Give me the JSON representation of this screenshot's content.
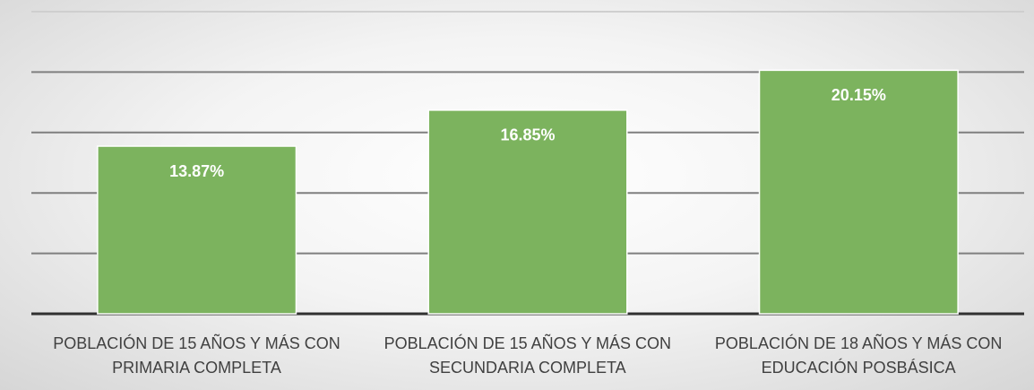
{
  "chart_data": {
    "type": "bar",
    "categories": [
      "POBLACIÓN DE 15 AÑOS Y MÁS CON\nPRIMARIA COMPLETA",
      "POBLACIÓN DE 15 AÑOS Y MÁS CON\nSECUNDARIA COMPLETA",
      "POBLACIÓN DE 18 AÑOS Y MÁS CON\nEDUCACIÓN POSBÁSICA"
    ],
    "values": [
      13.87,
      16.85,
      20.15
    ],
    "value_labels": [
      "13.87%",
      "16.85%",
      "20.15%"
    ],
    "color": "#7cb35e",
    "ylim": [
      0,
      25
    ],
    "yticks": [
      0,
      5,
      10,
      15,
      20,
      25
    ],
    "grid": true
  }
}
